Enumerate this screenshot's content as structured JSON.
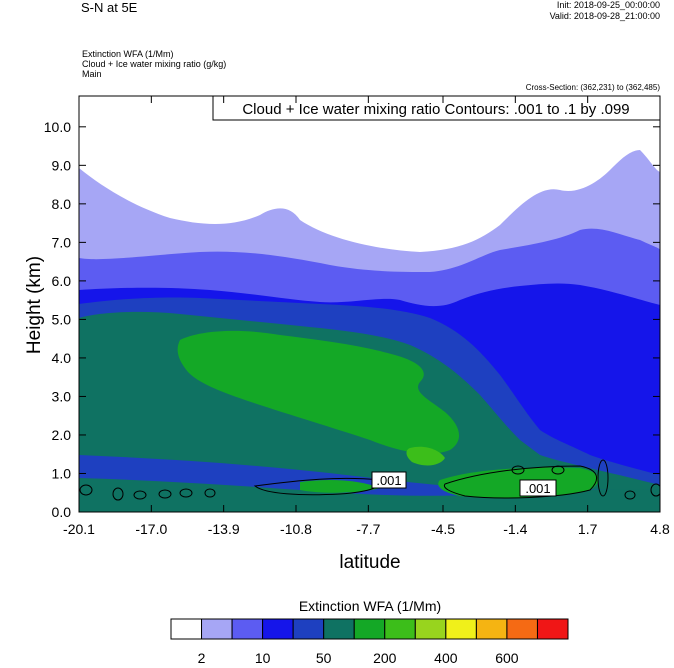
{
  "header": {
    "title": "S-N at 5E",
    "init": "Init: 2018-09-25_00:00:00",
    "valid": "Valid: 2018-09-28_21:00:00",
    "var_line1": "Extinction WFA   (1/Mm)",
    "var_line2": "Cloud + Ice water mixing ratio   (g/kg)",
    "var_line3": "Main",
    "cross_section": "Cross-Section: (362,231) to (362,485)"
  },
  "chart_data": {
    "type": "heatmap",
    "title": "S-N at 5E",
    "xlabel": "latitude",
    "ylabel": "Height (km)",
    "x_ticks": [
      "-20.1",
      "-17.0",
      "-13.9",
      "-10.8",
      "-7.7",
      "-4.5",
      "-1.4",
      "1.7",
      "4.8"
    ],
    "y_ticks": [
      "0.0",
      "1.0",
      "2.0",
      "3.0",
      "4.0",
      "5.0",
      "6.0",
      "7.0",
      "8.0",
      "9.0",
      "10.0"
    ],
    "xlim": [
      -20.1,
      4.8
    ],
    "ylim": [
      0.0,
      10.8
    ],
    "contour_info": "Cloud + Ice water mixing ratio Contours: .001 to .1 by .099",
    "contour_labels": [
      ".001",
      ".001"
    ],
    "colorbar": {
      "title": "Extinction WFA  (1/Mm)",
      "labels": [
        "2",
        "10",
        "50",
        "200",
        "400",
        "600"
      ],
      "colors": [
        "#ffffff",
        "#a6a6f5",
        "#5c5cf2",
        "#1515ea",
        "#1e40c0",
        "#0f7262",
        "#14a826",
        "#3cbe1a",
        "#98d41e",
        "#f0f01a",
        "#f5b412",
        "#f56a14",
        "#f01616"
      ]
    }
  }
}
